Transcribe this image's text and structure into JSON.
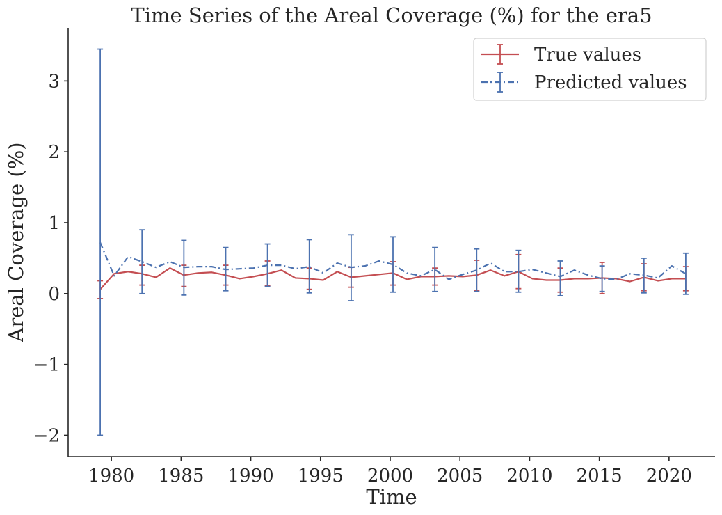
{
  "chart_data": {
    "type": "line",
    "title": "Time Series of the Areal Coverage (%) for the era5",
    "xlabel": "Time",
    "ylabel": "Areal Coverage (%)",
    "xlim": [
      1976.9,
      2023.3
    ],
    "ylim": [
      -2.3,
      3.75
    ],
    "xticks": [
      1980,
      1985,
      1990,
      1995,
      2000,
      2005,
      2010,
      2015,
      2020
    ],
    "xtick_labels": [
      "1980",
      "1985",
      "1990",
      "1995",
      "2000",
      "2005",
      "2010",
      "2015",
      "2020"
    ],
    "yticks": [
      -2,
      -1,
      0,
      1,
      2,
      3
    ],
    "ytick_labels": [
      "−2",
      "−1",
      "0",
      "1",
      "2",
      "3"
    ],
    "grid": false,
    "legend_position": "top-right",
    "x": [
      1979.2,
      1980.2,
      1981.2,
      1982.2,
      1983.2,
      1984.2,
      1985.2,
      1986.2,
      1987.2,
      1988.2,
      1989.2,
      1990.2,
      1991.2,
      1992.2,
      1993.2,
      1994.2,
      1995.2,
      1996.2,
      1997.2,
      1998.2,
      1999.2,
      2000.2,
      2001.2,
      2002.2,
      2003.2,
      2004.2,
      2005.2,
      2006.2,
      2007.2,
      2008.2,
      2009.2,
      2010.2,
      2011.2,
      2012.2,
      2013.2,
      2014.2,
      2015.2,
      2016.2,
      2017.2,
      2018.2,
      2019.2,
      2020.2,
      2021.2
    ],
    "series": [
      {
        "name": "True values",
        "color": "#c44e52",
        "linestyle": "solid",
        "values": [
          0.06,
          0.28,
          0.31,
          0.28,
          0.23,
          0.36,
          0.26,
          0.29,
          0.3,
          0.26,
          0.21,
          0.24,
          0.28,
          0.33,
          0.22,
          0.21,
          0.19,
          0.31,
          0.23,
          0.25,
          0.27,
          0.29,
          0.2,
          0.24,
          0.24,
          0.25,
          0.24,
          0.26,
          0.33,
          0.25,
          0.31,
          0.21,
          0.19,
          0.19,
          0.21,
          0.21,
          0.22,
          0.21,
          0.17,
          0.23,
          0.18,
          0.21,
          0.21
        ],
        "errorbars": [
          {
            "x": 1979.2,
            "low": -0.07,
            "high": 0.18
          },
          {
            "x": 1982.2,
            "low": 0.12,
            "high": 0.4
          },
          {
            "x": 1985.2,
            "low": 0.1,
            "high": 0.4
          },
          {
            "x": 1988.2,
            "low": 0.12,
            "high": 0.4
          },
          {
            "x": 1991.2,
            "low": 0.11,
            "high": 0.46
          },
          {
            "x": 1994.2,
            "low": 0.06,
            "high": 0.36
          },
          {
            "x": 1997.2,
            "low": 0.09,
            "high": 0.37
          },
          {
            "x": 2000.2,
            "low": 0.12,
            "high": 0.45
          },
          {
            "x": 2003.2,
            "low": 0.12,
            "high": 0.36
          },
          {
            "x": 2006.2,
            "low": 0.04,
            "high": 0.47
          },
          {
            "x": 2009.2,
            "low": 0.07,
            "high": 0.55
          },
          {
            "x": 2012.2,
            "low": 0.02,
            "high": 0.36
          },
          {
            "x": 2015.2,
            "low": 0.0,
            "high": 0.44
          },
          {
            "x": 2018.2,
            "low": 0.04,
            "high": 0.42
          },
          {
            "x": 2021.2,
            "low": 0.04,
            "high": 0.38
          }
        ]
      },
      {
        "name": "Predicted values",
        "color": "#4c72b0",
        "linestyle": "dashdot",
        "values": [
          0.72,
          0.25,
          0.52,
          0.45,
          0.37,
          0.45,
          0.37,
          0.38,
          0.38,
          0.34,
          0.35,
          0.36,
          0.4,
          0.4,
          0.35,
          0.38,
          0.29,
          0.43,
          0.37,
          0.39,
          0.46,
          0.41,
          0.29,
          0.25,
          0.34,
          0.2,
          0.27,
          0.33,
          0.43,
          0.31,
          0.31,
          0.34,
          0.29,
          0.24,
          0.33,
          0.26,
          0.21,
          0.2,
          0.28,
          0.26,
          0.22,
          0.39,
          0.28
        ],
        "errorbars": [
          {
            "x": 1979.2,
            "low": -2.0,
            "high": 3.45
          },
          {
            "x": 1982.2,
            "low": 0.0,
            "high": 0.9
          },
          {
            "x": 1985.2,
            "low": -0.02,
            "high": 0.75
          },
          {
            "x": 1988.2,
            "low": 0.04,
            "high": 0.65
          },
          {
            "x": 1991.2,
            "low": 0.1,
            "high": 0.7
          },
          {
            "x": 1994.2,
            "low": 0.01,
            "high": 0.76
          },
          {
            "x": 1997.2,
            "low": -0.1,
            "high": 0.83
          },
          {
            "x": 2000.2,
            "low": 0.02,
            "high": 0.8
          },
          {
            "x": 2003.2,
            "low": 0.03,
            "high": 0.65
          },
          {
            "x": 2006.2,
            "low": 0.03,
            "high": 0.63
          },
          {
            "x": 2009.2,
            "low": 0.02,
            "high": 0.61
          },
          {
            "x": 2012.2,
            "low": -0.03,
            "high": 0.46
          },
          {
            "x": 2015.2,
            "low": 0.03,
            "high": 0.39
          },
          {
            "x": 2018.2,
            "low": 0.01,
            "high": 0.5
          },
          {
            "x": 2021.2,
            "low": -0.01,
            "high": 0.57
          }
        ]
      }
    ]
  }
}
